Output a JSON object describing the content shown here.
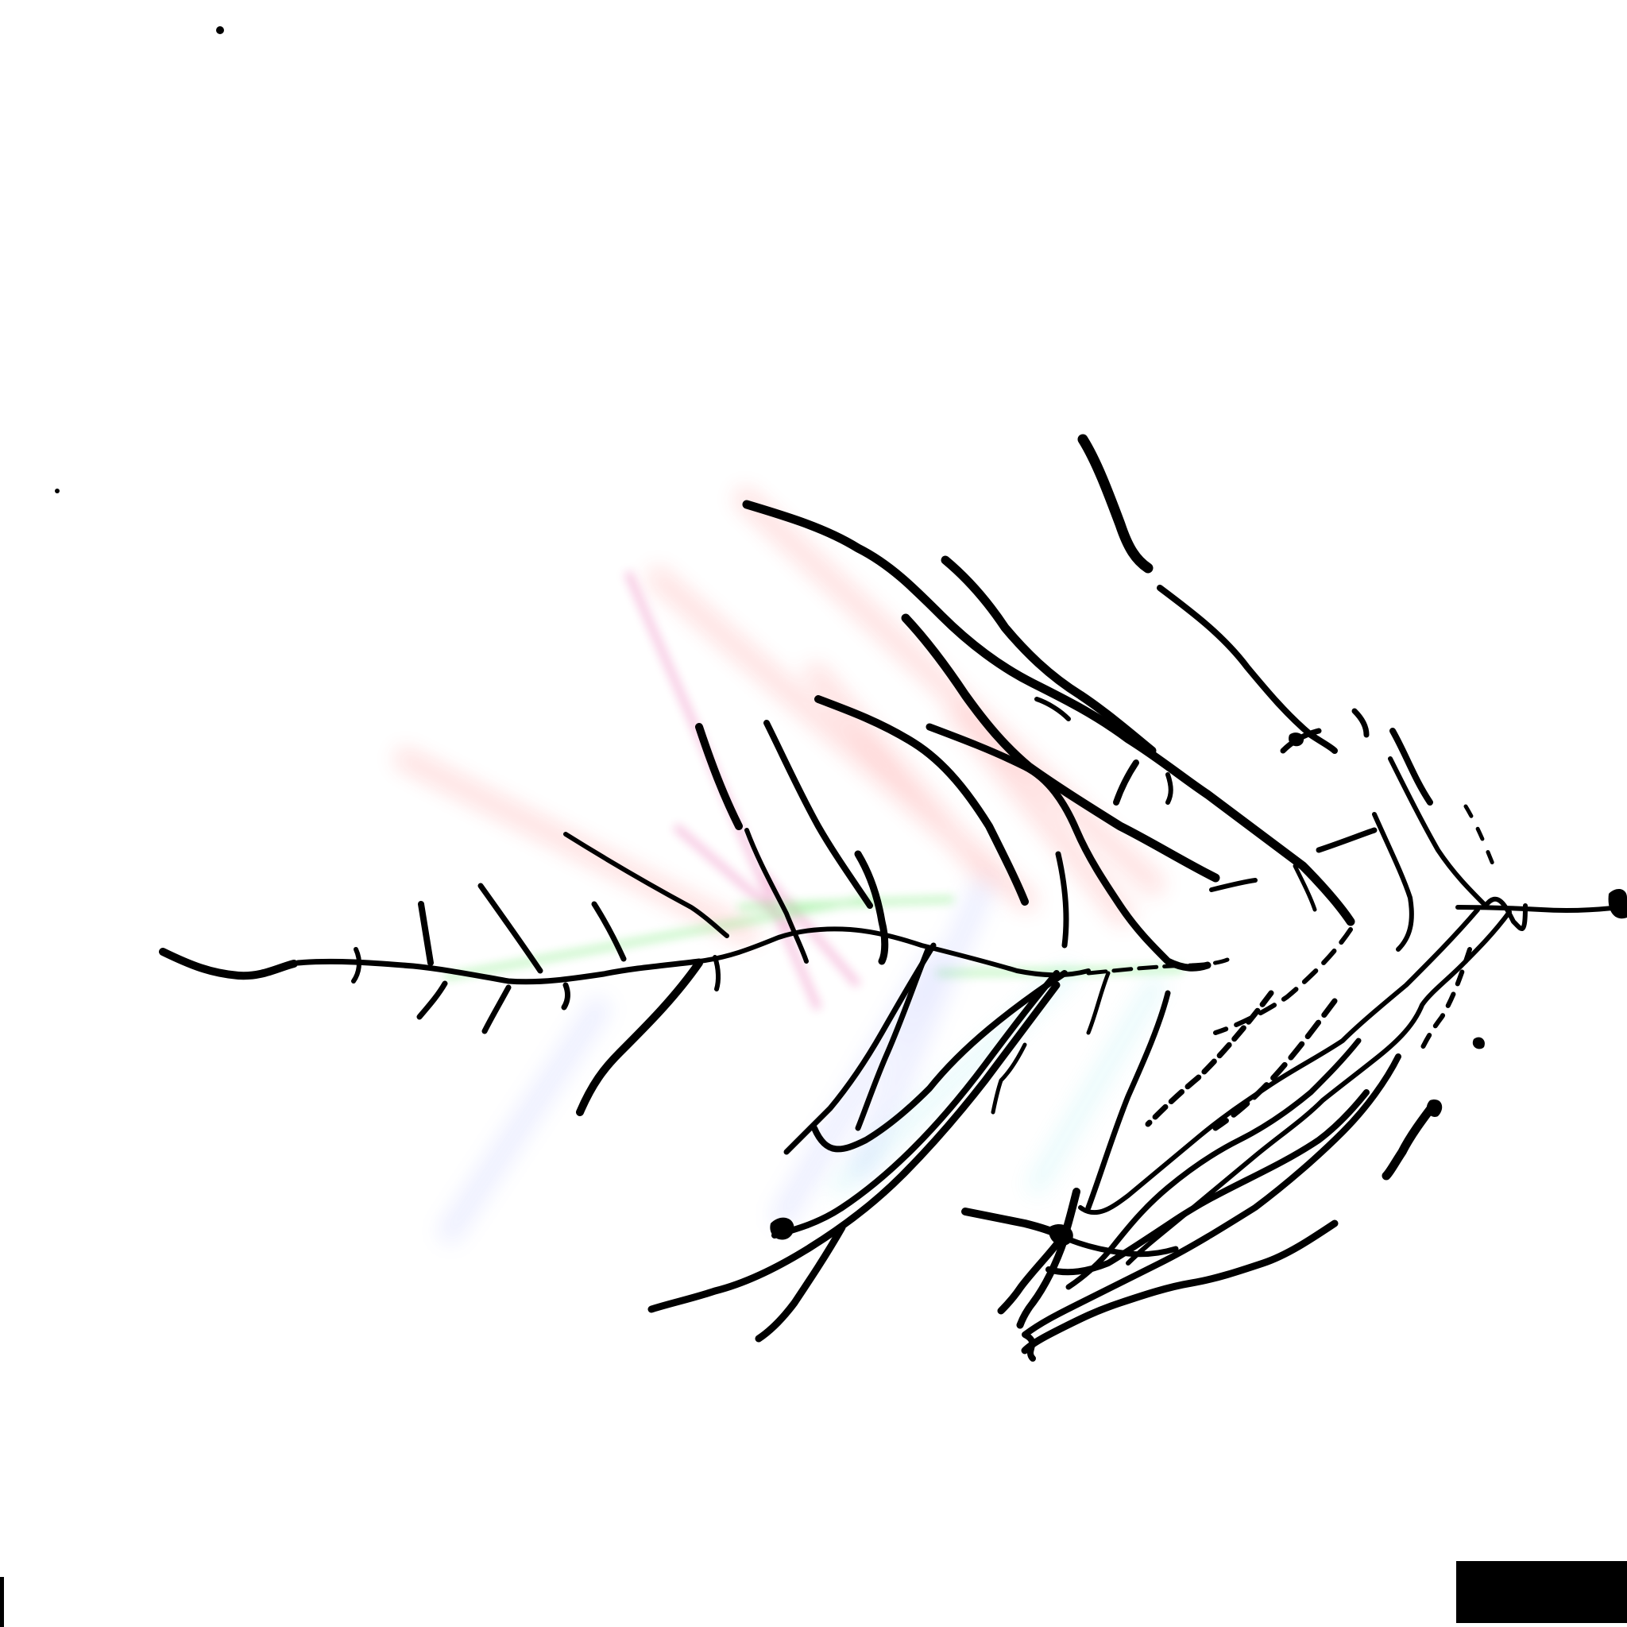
{
  "image": {
    "background": "#ffffff",
    "ink_color": "#000000",
    "glow_colors": {
      "red": "#ff3a3a",
      "magenta": "#e0208a",
      "green": "#22dd22",
      "blue": "#6a7cff",
      "cyan": "#3ad6e0"
    }
  }
}
